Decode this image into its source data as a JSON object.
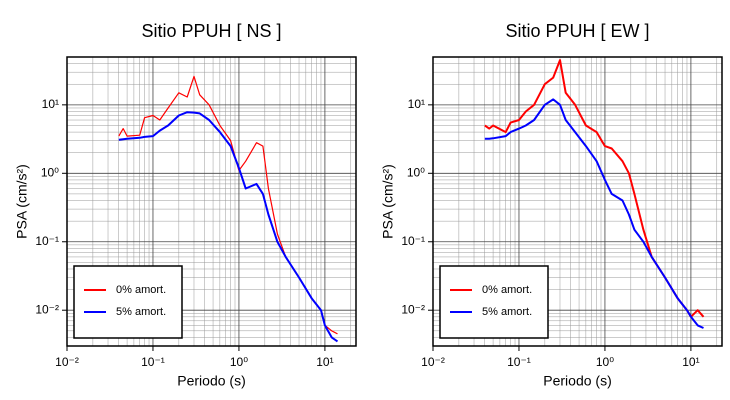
{
  "chart_data": [
    {
      "type": "line",
      "title": "Sitio PPUH [ NS ]",
      "x_label": "Periodo (s)",
      "y_label": "PSA (cm/s²)",
      "xscale": "log",
      "yscale": "log",
      "grid": true,
      "legend": "lower left",
      "xlim": [
        0.01,
        23
      ],
      "ylim": [
        0.003,
        50
      ],
      "xticks": [
        {
          "value": 0.01,
          "label": "10⁻²"
        },
        {
          "value": 0.1,
          "label": "10⁻¹"
        },
        {
          "value": 1,
          "label": "10⁰"
        },
        {
          "value": 10,
          "label": "10¹"
        }
      ],
      "yticks": [
        {
          "value": 0.01,
          "label": "10⁻²"
        },
        {
          "value": 0.1,
          "label": "10⁻¹"
        },
        {
          "value": 1,
          "label": "10⁰"
        },
        {
          "value": 10,
          "label": "10¹"
        }
      ],
      "xticks_minor": [
        0.02,
        0.03,
        0.04,
        0.05,
        0.06,
        0.07,
        0.08,
        0.09,
        0.2,
        0.3,
        0.4,
        0.5,
        0.6,
        0.7,
        0.8,
        0.9,
        2,
        3,
        4,
        5,
        6,
        7,
        8,
        9,
        20
      ],
      "yticks_minor": [
        0.004,
        0.005,
        0.006,
        0.007,
        0.008,
        0.009,
        0.02,
        0.03,
        0.04,
        0.05,
        0.06,
        0.07,
        0.08,
        0.09,
        0.2,
        0.3,
        0.4,
        0.5,
        0.6,
        0.7,
        0.8,
        0.9,
        2,
        3,
        4,
        5,
        6,
        7,
        8,
        9,
        20,
        30,
        40
      ],
      "x": [
        0.04,
        0.045,
        0.05,
        0.07,
        0.08,
        0.1,
        0.12,
        0.15,
        0.2,
        0.25,
        0.3,
        0.35,
        0.45,
        0.6,
        0.8,
        1.0,
        1.2,
        1.6,
        1.9,
        2.2,
        2.8,
        3.5,
        5,
        7,
        9,
        10,
        12,
        14
      ],
      "series": [
        {
          "name": "0% amort.",
          "color": "#ff0000",
          "width": 1.2,
          "values": [
            3.5,
            4.5,
            3.5,
            3.6,
            6.5,
            7,
            6,
            9,
            15,
            13,
            26,
            14,
            10,
            5,
            3,
            1.1,
            1.5,
            2.8,
            2.5,
            0.6,
            0.13,
            0.06,
            0.03,
            0.015,
            0.01,
            0.006,
            0.005,
            0.0045
          ]
        },
        {
          "name": "5% amort.",
          "color": "#0000ff",
          "width": 2,
          "values": [
            3.1,
            3.15,
            3.2,
            3.3,
            3.4,
            3.5,
            4.2,
            5,
            7,
            7.8,
            7.7,
            7.5,
            6,
            4,
            2.5,
            1.2,
            0.6,
            0.7,
            0.5,
            0.25,
            0.1,
            0.06,
            0.03,
            0.015,
            0.01,
            0.006,
            0.004,
            0.0035
          ]
        }
      ]
    },
    {
      "type": "line",
      "title": "Sitio PPUH [ EW ]",
      "x_label": "Periodo (s)",
      "y_label": "PSA (cm/s²)",
      "xscale": "log",
      "yscale": "log",
      "grid": true,
      "legend": "lower left",
      "xlim": [
        0.01,
        23
      ],
      "ylim": [
        0.003,
        50
      ],
      "xticks": [
        {
          "value": 0.01,
          "label": "10⁻²"
        },
        {
          "value": 0.1,
          "label": "10⁻¹"
        },
        {
          "value": 1,
          "label": "10⁰"
        },
        {
          "value": 10,
          "label": "10¹"
        }
      ],
      "yticks": [
        {
          "value": 0.01,
          "label": "10⁻²"
        },
        {
          "value": 0.1,
          "label": "10⁻¹"
        },
        {
          "value": 1,
          "label": "10⁰"
        },
        {
          "value": 10,
          "label": "10¹"
        }
      ],
      "xticks_minor": [
        0.02,
        0.03,
        0.04,
        0.05,
        0.06,
        0.07,
        0.08,
        0.09,
        0.2,
        0.3,
        0.4,
        0.5,
        0.6,
        0.7,
        0.8,
        0.9,
        2,
        3,
        4,
        5,
        6,
        7,
        8,
        9,
        20
      ],
      "yticks_minor": [
        0.004,
        0.005,
        0.006,
        0.007,
        0.008,
        0.009,
        0.02,
        0.03,
        0.04,
        0.05,
        0.06,
        0.07,
        0.08,
        0.09,
        0.2,
        0.3,
        0.4,
        0.5,
        0.6,
        0.7,
        0.8,
        0.9,
        2,
        3,
        4,
        5,
        6,
        7,
        8,
        9,
        20,
        30,
        40
      ],
      "x": [
        0.04,
        0.045,
        0.05,
        0.07,
        0.08,
        0.1,
        0.12,
        0.15,
        0.2,
        0.25,
        0.3,
        0.35,
        0.45,
        0.6,
        0.8,
        1.0,
        1.2,
        1.6,
        1.9,
        2.2,
        2.8,
        3.5,
        5,
        7,
        9,
        10,
        12,
        14
      ],
      "series": [
        {
          "name": "0% amort.",
          "color": "#ff0000",
          "width": 2,
          "values": [
            5,
            4.5,
            5,
            4,
            5.5,
            6,
            8,
            10,
            20,
            25,
            45,
            15,
            10,
            5,
            4,
            2.5,
            2.3,
            1.5,
            1,
            0.5,
            0.15,
            0.06,
            0.03,
            0.015,
            0.01,
            0.008,
            0.01,
            0.008
          ]
        },
        {
          "name": "5% amort.",
          "color": "#0000ff",
          "width": 2,
          "values": [
            3.2,
            3.2,
            3.25,
            3.5,
            4,
            4.5,
            5,
            6,
            10,
            12,
            10,
            6,
            4,
            2.5,
            1.5,
            0.8,
            0.5,
            0.4,
            0.25,
            0.15,
            0.1,
            0.06,
            0.03,
            0.015,
            0.01,
            0.008,
            0.006,
            0.0055
          ]
        }
      ]
    }
  ]
}
